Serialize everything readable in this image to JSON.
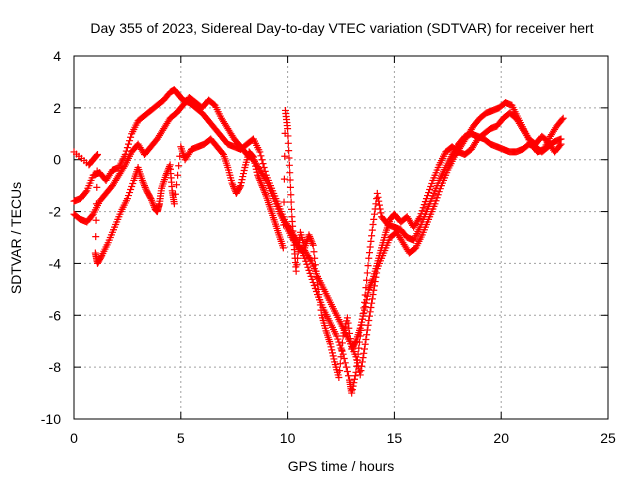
{
  "chart_data": {
    "type": "scatter",
    "title": "Day 355 of 2023, Sidereal Day-to-day VTEC variation (SDTVAR) for receiver hert",
    "xlabel": "GPS time / hours",
    "ylabel": "SDTVAR / TECUs",
    "xlim": [
      0,
      25
    ],
    "ylim": [
      -10,
      4
    ],
    "xticks": [
      "0",
      "5",
      "10",
      "15",
      "20",
      "25"
    ],
    "yticks": [
      "4",
      "2",
      "0",
      "-2",
      "-4",
      "-6",
      "-8",
      "-10"
    ],
    "grid": true,
    "legend": "none",
    "marker": "+",
    "marker_color": "#ff0000",
    "series": [
      {
        "points": [
          [
            0.0,
            -1.6
          ],
          [
            0.3,
            -1.5
          ],
          [
            0.6,
            -1.2
          ],
          [
            0.9,
            -0.6
          ],
          [
            1.2,
            -0.5
          ],
          [
            1.5,
            -0.8
          ],
          [
            1.8,
            -0.4
          ],
          [
            2.1,
            -0.3
          ],
          [
            2.4,
            0.2
          ],
          [
            2.7,
            1.0
          ],
          [
            3.0,
            1.5
          ],
          [
            3.3,
            1.7
          ],
          [
            3.6,
            1.9
          ],
          [
            3.9,
            2.1
          ],
          [
            4.2,
            2.3
          ],
          [
            4.5,
            2.6
          ],
          [
            4.7,
            2.7
          ],
          [
            4.9,
            2.5
          ],
          [
            5.1,
            2.3
          ],
          [
            5.4,
            2.2
          ],
          [
            5.7,
            2.0
          ],
          [
            6.0,
            1.8
          ],
          [
            6.3,
            1.5
          ],
          [
            6.6,
            1.2
          ],
          [
            6.9,
            0.9
          ],
          [
            7.2,
            0.6
          ],
          [
            7.5,
            0.5
          ],
          [
            7.8,
            0.4
          ],
          [
            8.1,
            0.6
          ],
          [
            8.4,
            0.8
          ],
          [
            8.7,
            0.3
          ],
          [
            9.0,
            -0.6
          ],
          [
            9.3,
            -1.2
          ],
          [
            9.6,
            -1.8
          ],
          [
            9.9,
            -2.4
          ],
          [
            10.2,
            -2.8
          ],
          [
            10.5,
            -3.2
          ],
          [
            10.8,
            -3.8
          ],
          [
            11.1,
            -4.5
          ],
          [
            11.4,
            -5.2
          ],
          [
            11.7,
            -5.8
          ],
          [
            12.0,
            -6.3
          ],
          [
            12.3,
            -6.8
          ],
          [
            12.6,
            -7.5
          ],
          [
            12.9,
            -8.5
          ],
          [
            13.0,
            -9.0
          ],
          [
            13.2,
            -8.2
          ],
          [
            13.4,
            -6.8
          ],
          [
            13.6,
            -5.5
          ],
          [
            13.8,
            -3.8
          ],
          [
            14.0,
            -2.5
          ],
          [
            14.2,
            -1.3
          ],
          [
            14.4,
            -2.2
          ],
          [
            14.7,
            -2.5
          ],
          [
            15.0,
            -2.6
          ],
          [
            15.3,
            -2.7
          ],
          [
            15.6,
            -3.0
          ],
          [
            15.9,
            -3.1
          ],
          [
            16.2,
            -2.6
          ],
          [
            16.5,
            -2.0
          ],
          [
            16.8,
            -1.4
          ],
          [
            17.1,
            -0.8
          ],
          [
            17.4,
            -0.3
          ],
          [
            17.7,
            0.2
          ],
          [
            18.0,
            0.6
          ],
          [
            18.3,
            0.9
          ],
          [
            18.6,
            1.0
          ],
          [
            18.9,
            0.9
          ],
          [
            19.2,
            0.8
          ],
          [
            19.5,
            0.6
          ],
          [
            19.8,
            0.5
          ],
          [
            20.1,
            0.4
          ],
          [
            20.4,
            0.3
          ],
          [
            20.7,
            0.3
          ],
          [
            21.0,
            0.4
          ],
          [
            21.3,
            0.6
          ],
          [
            21.6,
            0.5
          ],
          [
            21.9,
            0.3
          ],
          [
            22.2,
            0.5
          ],
          [
            22.5,
            0.7
          ],
          [
            22.8,
            0.8
          ]
        ]
      },
      {
        "points": [
          [
            0.0,
            -2.1
          ],
          [
            0.3,
            -2.3
          ],
          [
            0.6,
            -2.4
          ],
          [
            0.9,
            -2.1
          ],
          [
            1.2,
            -1.6
          ],
          [
            1.5,
            -1.3
          ],
          [
            1.8,
            -1.0
          ],
          [
            2.1,
            -0.6
          ],
          [
            2.4,
            -0.2
          ],
          [
            2.7,
            0.3
          ],
          [
            3.0,
            0.6
          ],
          [
            3.3,
            0.2
          ],
          [
            3.6,
            0.5
          ],
          [
            3.9,
            0.8
          ],
          [
            4.2,
            1.2
          ],
          [
            4.5,
            1.6
          ],
          [
            4.8,
            1.8
          ],
          [
            5.1,
            2.1
          ],
          [
            5.4,
            2.4
          ],
          [
            5.7,
            2.2
          ],
          [
            6.0,
            2.0
          ],
          [
            6.3,
            2.3
          ],
          [
            6.6,
            2.1
          ],
          [
            6.9,
            1.6
          ],
          [
            7.2,
            1.2
          ],
          [
            7.5,
            0.8
          ],
          [
            7.8,
            0.5
          ],
          [
            8.1,
            0.2
          ],
          [
            8.4,
            0.0
          ],
          [
            8.7,
            -0.4
          ],
          [
            9.0,
            -0.8
          ],
          [
            9.3,
            -1.4
          ],
          [
            9.6,
            -2.0
          ],
          [
            9.9,
            -2.5
          ],
          [
            10.2,
            -3.0
          ],
          [
            10.5,
            -3.4
          ],
          [
            10.8,
            -3.5
          ],
          [
            11.1,
            -3.9
          ],
          [
            11.4,
            -4.5
          ],
          [
            11.7,
            -5.0
          ],
          [
            12.0,
            -5.5
          ],
          [
            12.3,
            -6.0
          ],
          [
            12.6,
            -6.5
          ],
          [
            12.9,
            -7.0
          ],
          [
            13.2,
            -7.6
          ],
          [
            13.4,
            -8.3
          ],
          [
            13.6,
            -7.3
          ],
          [
            13.8,
            -6.2
          ],
          [
            14.0,
            -5.2
          ],
          [
            14.2,
            -4.2
          ],
          [
            14.5,
            -3.6
          ],
          [
            14.8,
            -3.0
          ],
          [
            15.1,
            -2.8
          ],
          [
            15.4,
            -3.2
          ],
          [
            15.7,
            -3.6
          ],
          [
            16.0,
            -3.4
          ],
          [
            16.3,
            -2.9
          ],
          [
            16.6,
            -2.3
          ],
          [
            16.9,
            -1.7
          ],
          [
            17.2,
            -1.0
          ],
          [
            17.5,
            -0.4
          ],
          [
            17.8,
            0.1
          ],
          [
            18.1,
            0.5
          ],
          [
            18.4,
            0.9
          ],
          [
            18.7,
            1.3
          ],
          [
            19.0,
            1.6
          ],
          [
            19.3,
            1.8
          ],
          [
            19.6,
            1.9
          ],
          [
            19.9,
            2.0
          ],
          [
            20.2,
            2.2
          ],
          [
            20.5,
            2.1
          ],
          [
            20.8,
            1.6
          ],
          [
            21.1,
            1.1
          ],
          [
            21.4,
            0.6
          ],
          [
            21.7,
            0.3
          ],
          [
            22.0,
            0.4
          ],
          [
            22.3,
            0.9
          ],
          [
            22.6,
            1.3
          ],
          [
            22.9,
            1.6
          ]
        ]
      },
      {
        "points": [
          [
            0.0,
            0.3
          ],
          [
            0.7,
            -0.2
          ],
          [
            0.9,
            0.0
          ],
          [
            1.1,
            0.2
          ],
          [
            1.0,
            -3.6
          ],
          [
            1.1,
            -4.0
          ],
          [
            1.3,
            -3.7
          ],
          [
            1.6,
            -3.2
          ],
          [
            1.9,
            -2.6
          ],
          [
            2.2,
            -2.0
          ],
          [
            2.5,
            -1.5
          ],
          [
            2.8,
            -0.8
          ],
          [
            3.0,
            -0.3
          ],
          [
            3.2,
            -0.8
          ],
          [
            3.4,
            -1.2
          ],
          [
            3.6,
            -1.5
          ],
          [
            3.8,
            -1.9
          ],
          [
            3.9,
            -2.0
          ],
          [
            4.0,
            -1.7
          ],
          [
            4.1,
            -1.1
          ],
          [
            4.3,
            -0.6
          ],
          [
            4.5,
            -0.2
          ],
          [
            4.6,
            -1.2
          ],
          [
            4.7,
            -1.7
          ],
          [
            5.0,
            0.5
          ],
          [
            5.2,
            0.0
          ],
          [
            5.5,
            0.4
          ],
          [
            5.8,
            0.5
          ],
          [
            6.1,
            0.6
          ],
          [
            6.4,
            0.8
          ],
          [
            6.7,
            0.5
          ],
          [
            7.0,
            0.2
          ],
          [
            7.2,
            -0.3
          ],
          [
            7.4,
            -0.9
          ],
          [
            7.6,
            -1.3
          ],
          [
            7.8,
            -1.0
          ],
          [
            8.0,
            -0.3
          ],
          [
            8.2,
            0.3
          ],
          [
            8.4,
            0.1
          ],
          [
            8.6,
            -0.6
          ],
          [
            8.8,
            -1.0
          ],
          [
            9.0,
            -1.4
          ],
          [
            9.2,
            -1.9
          ],
          [
            9.4,
            -2.4
          ],
          [
            9.6,
            -2.9
          ],
          [
            9.8,
            -3.4
          ],
          [
            9.9,
            1.9
          ],
          [
            10.0,
            1.2
          ],
          [
            10.1,
            -0.5
          ],
          [
            10.2,
            -2.2
          ],
          [
            10.3,
            -3.3
          ],
          [
            10.4,
            -4.3
          ],
          [
            10.6,
            -2.8
          ],
          [
            10.8,
            -3.4
          ],
          [
            11.0,
            -2.9
          ],
          [
            11.2,
            -3.3
          ],
          [
            11.4,
            -4.8
          ],
          [
            11.6,
            -6.0
          ],
          [
            11.8,
            -6.6
          ],
          [
            12.0,
            -7.1
          ],
          [
            12.2,
            -7.8
          ],
          [
            12.4,
            -8.4
          ],
          [
            12.6,
            -6.8
          ],
          [
            12.8,
            -6.1
          ],
          [
            13.0,
            -7.3
          ],
          [
            13.2,
            -7.0
          ],
          [
            13.4,
            -6.5
          ],
          [
            13.6,
            -5.8
          ],
          [
            13.8,
            -5.0
          ],
          [
            14.0,
            -4.6
          ],
          [
            14.2,
            -4.0
          ],
          [
            14.4,
            -3.4
          ],
          [
            14.6,
            -2.8
          ],
          [
            14.8,
            -2.3
          ],
          [
            15.0,
            -2.1
          ],
          [
            15.3,
            -2.4
          ],
          [
            15.6,
            -2.2
          ],
          [
            15.9,
            -2.6
          ],
          [
            16.2,
            -2.2
          ],
          [
            16.5,
            -1.5
          ],
          [
            16.8,
            -0.8
          ],
          [
            17.1,
            -0.2
          ],
          [
            17.4,
            0.3
          ],
          [
            17.7,
            0.5
          ],
          [
            18.0,
            0.3
          ],
          [
            18.3,
            0.2
          ],
          [
            18.6,
            0.4
          ],
          [
            18.9,
            0.8
          ],
          [
            19.2,
            1.0
          ],
          [
            19.5,
            1.2
          ],
          [
            19.8,
            1.3
          ],
          [
            20.1,
            1.6
          ],
          [
            20.4,
            1.8
          ],
          [
            20.7,
            1.6
          ],
          [
            21.0,
            1.2
          ],
          [
            21.3,
            0.8
          ],
          [
            21.6,
            0.6
          ],
          [
            21.9,
            0.9
          ],
          [
            22.2,
            0.7
          ],
          [
            22.5,
            0.3
          ],
          [
            22.8,
            0.6
          ]
        ]
      }
    ]
  }
}
